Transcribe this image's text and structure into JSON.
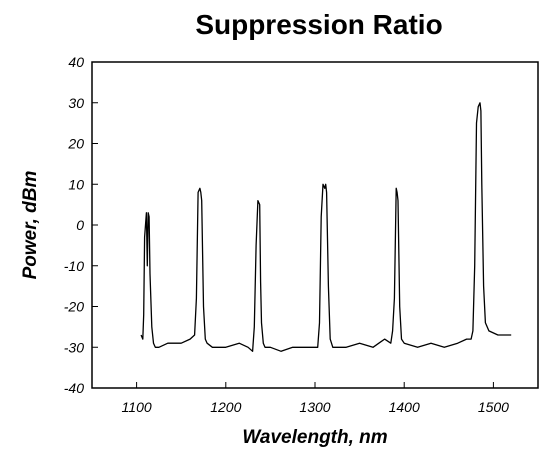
{
  "chart_data": {
    "type": "line",
    "title": "Suppression Ratio",
    "xlabel": "Wavelength, nm",
    "ylabel": "Power, dBm",
    "xlim": [
      1050,
      1550
    ],
    "ylim": [
      -40,
      40
    ],
    "xticks": [
      1100,
      1200,
      1300,
      1400,
      1500
    ],
    "yticks": [
      -40,
      -30,
      -20,
      -10,
      0,
      10,
      20,
      30,
      40
    ],
    "grid": false,
    "legend": "none",
    "peaks": [
      {
        "wavelength": 1113,
        "power": 3
      },
      {
        "wavelength": 1172,
        "power": 9
      },
      {
        "wavelength": 1238,
        "power": 6
      },
      {
        "wavelength": 1312,
        "power": 10
      },
      {
        "wavelength": 1392,
        "power": 9
      },
      {
        "wavelength": 1485,
        "power": 30
      }
    ],
    "series": [
      {
        "color": "#000000",
        "x": [
          1105,
          1107,
          1108,
          1109,
          1111,
          1112,
          1113,
          1114,
          1115,
          1117,
          1119,
          1121,
          1125,
          1135,
          1150,
          1160,
          1165,
          1167,
          1169,
          1171,
          1172,
          1173,
          1175,
          1177,
          1179,
          1185,
          1200,
          1215,
          1225,
          1230,
          1232,
          1234,
          1236,
          1238,
          1239,
          1240,
          1242,
          1244,
          1250,
          1262,
          1275,
          1290,
          1300,
          1303,
          1305,
          1307,
          1309,
          1311,
          1312,
          1313,
          1315,
          1317,
          1320,
          1335,
          1350,
          1365,
          1378,
          1385,
          1387,
          1389,
          1391,
          1392,
          1393,
          1395,
          1397,
          1400,
          1415,
          1430,
          1445,
          1460,
          1470,
          1475,
          1477,
          1479,
          1481,
          1483,
          1485,
          1486,
          1487,
          1489,
          1491,
          1495,
          1505,
          1515,
          1520
        ],
        "y": [
          -27,
          -28,
          -22,
          -3,
          3,
          -10,
          3,
          2,
          -12,
          -25,
          -29,
          -30,
          -30,
          -29,
          -29,
          -28,
          -27,
          -18,
          8,
          9,
          8,
          6,
          -20,
          -28,
          -29,
          -30,
          -30,
          -29,
          -30,
          -31,
          -25,
          -5,
          6,
          5,
          -14,
          -24,
          -29,
          -30,
          -30,
          -31,
          -30,
          -30,
          -30,
          -30,
          -24,
          2,
          10,
          9,
          10,
          8,
          -15,
          -28,
          -30,
          -30,
          -29,
          -30,
          -28,
          -29,
          -26,
          -18,
          9,
          8,
          6,
          -20,
          -28,
          -29,
          -30,
          -29,
          -30,
          -29,
          -28,
          -28,
          -26,
          -10,
          25,
          29,
          30,
          28,
          10,
          -15,
          -24,
          -26,
          -27,
          -27,
          -27
        ]
      }
    ]
  }
}
